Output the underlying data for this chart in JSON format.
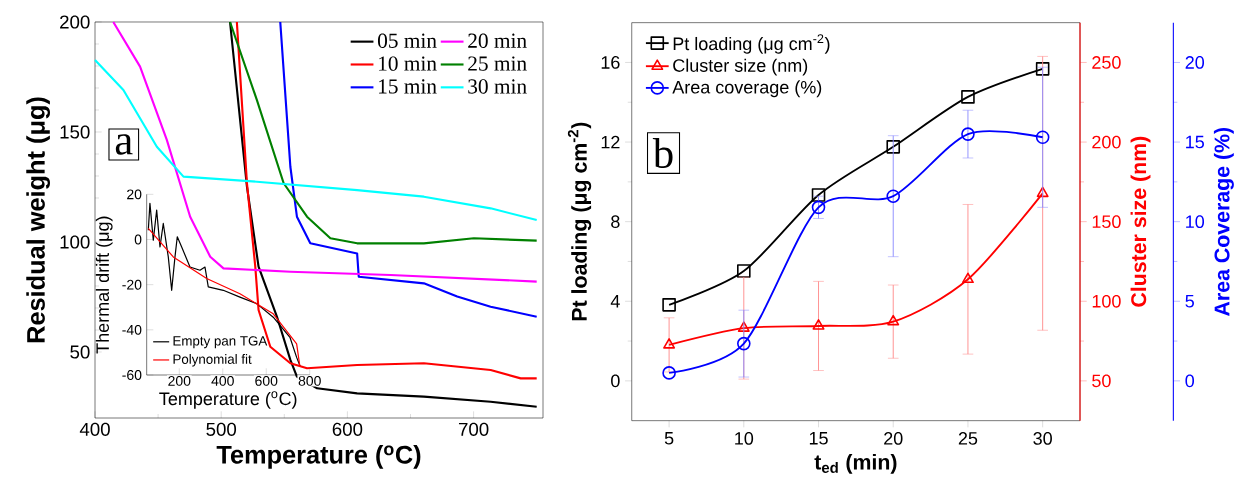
{
  "chart_data": [
    {
      "type": "line",
      "xlabel": "Temperature ($^{o}$C)",
      "ylabel": "Residual weight (μg)",
      "xlim": [
        400,
        755
      ],
      "ylim": [
        20,
        200
      ],
      "xticks": [
        400,
        500,
        600,
        700
      ],
      "yticks": [
        50,
        100,
        150,
        200
      ],
      "legend": "top right",
      "annotations": [
        "a"
      ],
      "series": [
        {
          "name": "05 min",
          "color": "#000000",
          "x": [
            507,
            520.4,
            529.6,
            544.2,
            554.8,
            560,
            576,
            607.7,
            660.6,
            713.5,
            750
          ],
          "values": [
            200,
            125.2,
            88.8,
            66,
            46.4,
            38.8,
            33.5,
            31.2,
            29.7,
            27.4,
            25.1
          ]
        },
        {
          "name": "10 min",
          "color": "#ff0000",
          "x": [
            512.4,
            520.4,
            527,
            529.6,
            538.9,
            554.8,
            568,
            607.7,
            660.6,
            713.5,
            737.3,
            750
          ],
          "values": [
            200,
            126.7,
            88.8,
            69.1,
            52.4,
            44.9,
            42.6,
            44.1,
            44.9,
            41.8,
            38,
            38
          ]
        },
        {
          "name": "15 min",
          "color": "#0000ff",
          "x": [
            546.8,
            554.8,
            560,
            570.6,
            607.7,
            609,
            660.6,
            687,
            713.5,
            750
          ],
          "values": [
            200,
            134.2,
            111.5,
            99.4,
            94.8,
            84.2,
            81.2,
            75.2,
            70.6,
            66
          ]
        },
        {
          "name": "20 min",
          "color": "#ff00ff",
          "x": [
            414.5,
            435.7,
            456.9,
            475.4,
            491.3,
            501.8,
            554.8,
            634.1,
            750
          ],
          "values": [
            200,
            179.7,
            146.4,
            111.5,
            93.3,
            88,
            86.5,
            85,
            82
          ]
        },
        {
          "name": "25 min",
          "color": "#008000",
          "x": [
            507,
            528.3,
            549.5,
            568,
            586.5,
            607.7,
            660.6,
            700.2,
            750
          ],
          "values": [
            200,
            164.5,
            126.7,
            111.5,
            101.7,
            99.4,
            99.4,
            101.7,
            100.6
          ]
        },
        {
          "name": "30 min",
          "color": "#00ffff",
          "x": [
            400,
            422.5,
            449,
            470.1,
            528.3,
            607.7,
            660.6,
            713.5,
            750
          ],
          "values": [
            182.7,
            169.1,
            143.3,
            129.7,
            127.4,
            123.6,
            120.6,
            115.3,
            110
          ]
        }
      ]
    },
    {
      "type": "line",
      "xlabel": "Temperature ($^{o}$C)",
      "ylabel": "Thermal drift (μg)",
      "xlim": [
        50,
        800
      ],
      "ylim": [
        -60,
        20
      ],
      "xticks": [
        200,
        400,
        600,
        800
      ],
      "yticks": [
        -60,
        -40,
        -20,
        0,
        20
      ],
      "legend": "bottom left",
      "series": [
        {
          "name": "Empty pan TGA",
          "color": "#000000",
          "x": [
            57.5,
            65,
            80.5,
            96,
            111.3,
            126.4,
            149.4,
            165,
            180.2,
            190.8,
            211,
            249.2,
            295.2,
            318.2,
            333.3,
            402.3,
            479,
            555.9,
            632.2,
            709,
            739.8,
            755
          ],
          "values": [
            4.1,
            16,
            -0.3,
            13,
            -3.3,
            7.1,
            -7.7,
            -22.5,
            -7.7,
            1.2,
            -3.3,
            -12.2,
            -13.6,
            -12.2,
            -21,
            -22.5,
            -25.5,
            -28.4,
            -34.4,
            -43.3,
            -52.2,
            -55.9
          ]
        },
        {
          "name": "Polynomial fit",
          "color": "#ff0000",
          "x": [
            57.5,
            172.4,
            326,
            479,
            632.2,
            739.8,
            755
          ],
          "values": [
            4.9,
            -7.7,
            -17.3,
            -24,
            -32.9,
            -46.2,
            -56.4
          ]
        }
      ]
    },
    {
      "type": "line",
      "xlabel": "t$_{ed}$ (min)",
      "ylabel": "Pt loading (μg cm$^{-2}$)",
      "y2label": "Cluster size (nm)",
      "y3label": "Area Coverage (%)",
      "x": [
        5,
        10,
        15,
        20,
        25,
        30
      ],
      "xlim": [
        2.5,
        32.5
      ],
      "xticks": [
        5,
        10,
        15,
        20,
        25,
        30
      ],
      "ylim": [
        -2,
        18
      ],
      "yticks": [
        0,
        4,
        8,
        12,
        16
      ],
      "y2lim": [
        25,
        275
      ],
      "y2ticks": [
        50,
        100,
        150,
        200,
        250
      ],
      "y3lim": [
        -2.5,
        22.5
      ],
      "y3ticks": [
        0,
        5,
        10,
        15,
        20
      ],
      "legend": "top left",
      "annotations": [
        "b"
      ],
      "series": [
        {
          "name": "Pt loading (μg cm$^{-2}$)",
          "color": "#000000",
          "marker": "square",
          "values": [
            3.82,
            5.52,
            9.34,
            11.76,
            14.27,
            15.68
          ]
        },
        {
          "name": "Cluster size (nm)",
          "color": "#ff0000",
          "marker": "triangle",
          "axis": "y2",
          "values": [
            72.6,
            83.1,
            84.5,
            87.2,
            113.8,
            167.8
          ],
          "errors": [
            17,
            32,
            28,
            23,
            47,
            86
          ]
        },
        {
          "name": "Area coverage (%)",
          "color": "#0000ff",
          "marker": "circle",
          "axis": "y3",
          "values": [
            0.5,
            2.34,
            10.9,
            11.6,
            15.5,
            15.3
          ],
          "errors": [
            null,
            2.1,
            0.7,
            3.8,
            1.5,
            4.4
          ]
        }
      ]
    }
  ]
}
